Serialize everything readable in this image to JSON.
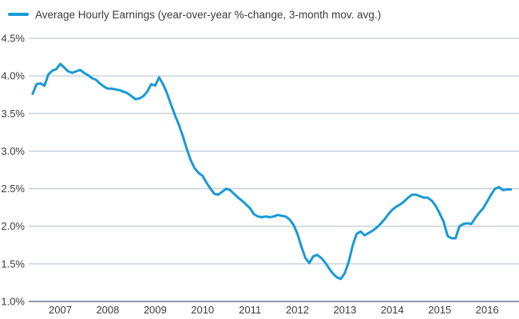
{
  "legend": {
    "label": "Average Hourly Earnings (year-over-year %-change, 3-month mov. avg.)"
  },
  "colors": {
    "line": "#189AD7",
    "gridline": "#AEBFC7",
    "axis_line": "#8E9CA4",
    "text": "#3C3C3C",
    "background": "#FFFFFF"
  },
  "chart_data": {
    "type": "line",
    "title": "Average Hourly Earnings (year-over-year %-change, 3-month mov. avg.)",
    "legend_position": "top-left",
    "grid": "horizontal",
    "ylim": [
      1.0,
      4.5
    ],
    "y_tick_step": 0.5,
    "y_tick_labels": [
      "1.0%",
      "1.5%",
      "2.0%",
      "2.5%",
      "3.0%",
      "3.5%",
      "4.0%",
      "4.5%"
    ],
    "x_tick_labels": [
      "2007",
      "2008",
      "2009",
      "2010",
      "2011",
      "2012",
      "2013",
      "2014",
      "2015",
      "2016"
    ],
    "series": [
      {
        "name": "Average Hourly Earnings (year-over-year %-change, 3-month mov. avg.)",
        "frequency": "monthly",
        "x_start": "2006-06",
        "x_end": "2016-07",
        "unit": "percent",
        "values": [
          3.76,
          3.89,
          3.9,
          3.87,
          4.02,
          4.07,
          4.09,
          4.16,
          4.11,
          4.06,
          4.04,
          4.06,
          4.08,
          4.04,
          4.01,
          3.97,
          3.95,
          3.9,
          3.86,
          3.83,
          3.83,
          3.82,
          3.81,
          3.79,
          3.77,
          3.73,
          3.69,
          3.7,
          3.73,
          3.79,
          3.89,
          3.87,
          3.98,
          3.89,
          3.77,
          3.62,
          3.48,
          3.35,
          3.2,
          3.03,
          2.88,
          2.77,
          2.71,
          2.67,
          2.58,
          2.5,
          2.43,
          2.42,
          2.46,
          2.5,
          2.48,
          2.43,
          2.38,
          2.34,
          2.29,
          2.24,
          2.16,
          2.13,
          2.12,
          2.13,
          2.12,
          2.13,
          2.15,
          2.14,
          2.13,
          2.09,
          2.02,
          1.9,
          1.73,
          1.58,
          1.51,
          1.6,
          1.62,
          1.58,
          1.52,
          1.44,
          1.37,
          1.32,
          1.3,
          1.38,
          1.53,
          1.75,
          1.9,
          1.93,
          1.88,
          1.91,
          1.94,
          1.98,
          2.03,
          2.09,
          2.16,
          2.22,
          2.26,
          2.29,
          2.33,
          2.38,
          2.42,
          2.42,
          2.4,
          2.38,
          2.38,
          2.34,
          2.27,
          2.17,
          2.06,
          1.87,
          1.84,
          1.84,
          2.0,
          2.03,
          2.04,
          2.03,
          2.11,
          2.18,
          2.24,
          2.33,
          2.42,
          2.5,
          2.52,
          2.48,
          2.49,
          2.49
        ]
      }
    ]
  }
}
